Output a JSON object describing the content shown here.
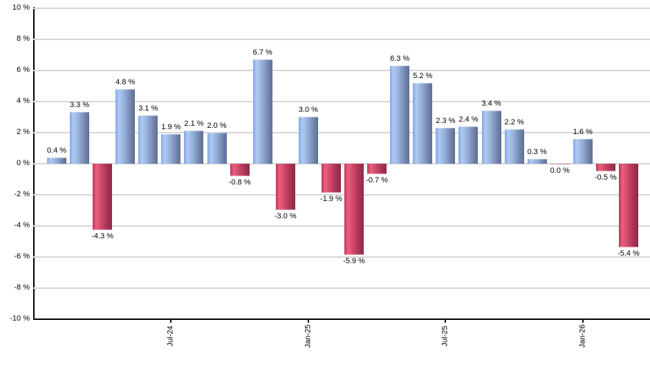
{
  "chart_data": {
    "type": "bar",
    "title": "",
    "xlabel": "",
    "ylabel": "",
    "grid": true,
    "legend": false,
    "values": [
      0.4,
      3.3,
      -4.3,
      4.8,
      3.1,
      1.9,
      2.1,
      2.0,
      -0.8,
      6.7,
      -3.0,
      3.0,
      -1.9,
      -5.9,
      -0.7,
      6.3,
      5.2,
      2.3,
      2.4,
      3.4,
      2.2,
      0.3,
      0.0,
      1.6,
      -0.5,
      -5.4
    ],
    "bar_labels": [
      "0.4 %",
      "3.3 %",
      "-4.3 %",
      "4.8 %",
      "3.1 %",
      "1.9 %",
      "2.1 %",
      "2.0 %",
      "-0.8 %",
      "6.7 %",
      "-3.0 %",
      "3.0 %",
      "-1.9 %",
      "-5.9 %",
      "-0.7 %",
      "6.3 %",
      "5.2 %",
      "2.3 %",
      "2.4 %",
      "3.4 %",
      "2.2 %",
      "0.3 %",
      "0.0 %",
      "1.6 %",
      "-0.5 %",
      "-5.4 %"
    ],
    "x_axis": {
      "tick_labels": [
        {
          "index": 5,
          "label": "Jul-24"
        },
        {
          "index": 11,
          "label": "Jan-25"
        },
        {
          "index": 17,
          "label": "Jul-25"
        },
        {
          "index": 23,
          "label": "Jan-26"
        }
      ]
    },
    "y_axis": {
      "range": [
        -10,
        10
      ],
      "tick_step": 2,
      "ticks": [
        {
          "value": 10,
          "label": "10 %"
        },
        {
          "value": 8,
          "label": "8 %"
        },
        {
          "value": 6,
          "label": "6 %"
        },
        {
          "value": 4,
          "label": "4 %"
        },
        {
          "value": 2,
          "label": "2 %"
        },
        {
          "value": 0,
          "label": "0 %"
        },
        {
          "value": -2,
          "label": "-2 %"
        },
        {
          "value": -4,
          "label": "-4 %"
        },
        {
          "value": -6,
          "label": "-6 %"
        },
        {
          "value": -8,
          "label": "-8 %"
        },
        {
          "value": -10,
          "label": "-10 %"
        }
      ]
    },
    "colors": {
      "positive_gradient": [
        "#83a5e3",
        "#aecbf5",
        "#93add6",
        "#7588b0",
        "#5d6e93"
      ],
      "negative_gradient": [
        "#c43058",
        "#e8627f",
        "#cc4568",
        "#a73355",
        "#8f2b48"
      ],
      "grid_color": "#d6d6d6",
      "axis_color": "#000000",
      "label_color": "#000000"
    }
  }
}
